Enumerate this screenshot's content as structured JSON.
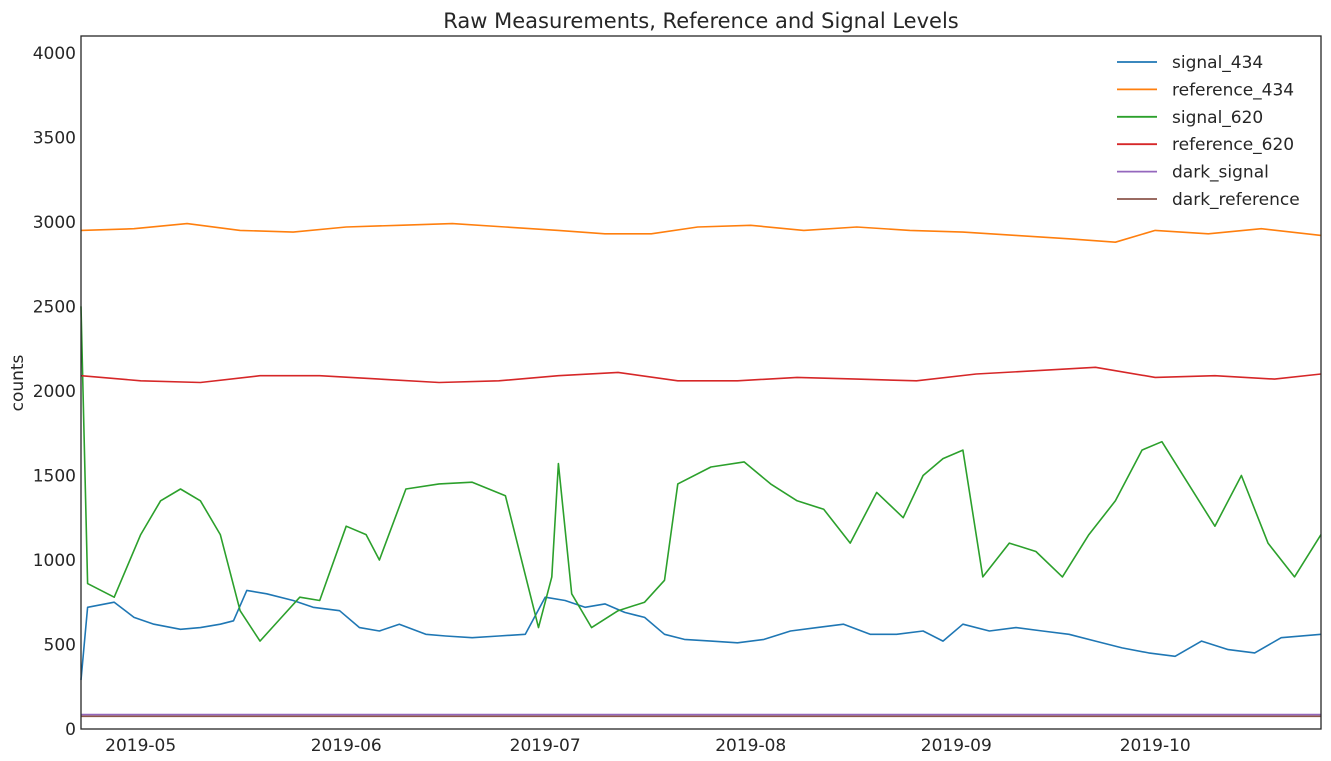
{
  "chart_data": {
    "type": "line",
    "title": "Raw Measurements, Reference and Signal Levels",
    "xlabel": "",
    "ylabel": "counts",
    "xlim": [
      "2019-04-22",
      "2019-10-26"
    ],
    "ylim": [
      0,
      4100
    ],
    "x_ticks": [
      "2019-05",
      "2019-06",
      "2019-07",
      "2019-08",
      "2019-09",
      "2019-10"
    ],
    "y_ticks": [
      0,
      500,
      1000,
      1500,
      2000,
      2500,
      3000,
      3500,
      4000
    ],
    "grid": false,
    "legend_position": "top-right",
    "series": [
      {
        "name": "signal_434",
        "color": "#1f77b4",
        "x": [
          "2019-04-22",
          "2019-04-23",
          "2019-04-27",
          "2019-04-30",
          "2019-05-03",
          "2019-05-07",
          "2019-05-10",
          "2019-05-13",
          "2019-05-15",
          "2019-05-17",
          "2019-05-20",
          "2019-05-24",
          "2019-05-27",
          "2019-05-31",
          "2019-06-03",
          "2019-06-06",
          "2019-06-09",
          "2019-06-13",
          "2019-06-16",
          "2019-06-20",
          "2019-06-24",
          "2019-06-28",
          "2019-07-01",
          "2019-07-04",
          "2019-07-07",
          "2019-07-10",
          "2019-07-13",
          "2019-07-16",
          "2019-07-19",
          "2019-07-22",
          "2019-07-26",
          "2019-07-30",
          "2019-08-03",
          "2019-08-07",
          "2019-08-11",
          "2019-08-15",
          "2019-08-19",
          "2019-08-23",
          "2019-08-27",
          "2019-08-30",
          "2019-09-02",
          "2019-09-06",
          "2019-09-10",
          "2019-09-14",
          "2019-09-18",
          "2019-09-22",
          "2019-09-26",
          "2019-09-30",
          "2019-10-04",
          "2019-10-08",
          "2019-10-12",
          "2019-10-16",
          "2019-10-20",
          "2019-10-26"
        ],
        "values": [
          290,
          720,
          750,
          660,
          620,
          590,
          600,
          620,
          640,
          820,
          800,
          760,
          720,
          700,
          600,
          580,
          620,
          560,
          550,
          540,
          550,
          560,
          780,
          760,
          720,
          740,
          690,
          660,
          560,
          530,
          520,
          510,
          530,
          580,
          600,
          620,
          560,
          560,
          580,
          520,
          620,
          580,
          600,
          580,
          560,
          520,
          480,
          450,
          430,
          520,
          470,
          450,
          540,
          560
        ]
      },
      {
        "name": "reference_434",
        "color": "#ff7f0e",
        "x": [
          "2019-04-22",
          "2019-04-30",
          "2019-05-08",
          "2019-05-16",
          "2019-05-24",
          "2019-06-01",
          "2019-06-09",
          "2019-06-17",
          "2019-06-25",
          "2019-07-03",
          "2019-07-10",
          "2019-07-17",
          "2019-07-24",
          "2019-08-01",
          "2019-08-09",
          "2019-08-17",
          "2019-08-25",
          "2019-09-02",
          "2019-09-10",
          "2019-09-18",
          "2019-09-25",
          "2019-10-01",
          "2019-10-09",
          "2019-10-17",
          "2019-10-26"
        ],
        "values": [
          2950,
          2960,
          2990,
          2950,
          2940,
          2970,
          2980,
          2990,
          2970,
          2950,
          2930,
          2930,
          2970,
          2980,
          2950,
          2970,
          2950,
          2940,
          2920,
          2900,
          2880,
          2950,
          2930,
          2960,
          2920
        ]
      },
      {
        "name": "signal_620",
        "color": "#2ca02c",
        "x": [
          "2019-04-22",
          "2019-04-23",
          "2019-04-27",
          "2019-05-01",
          "2019-05-04",
          "2019-05-07",
          "2019-05-10",
          "2019-05-13",
          "2019-05-16",
          "2019-05-19",
          "2019-05-22",
          "2019-05-25",
          "2019-05-28",
          "2019-06-01",
          "2019-06-04",
          "2019-06-06",
          "2019-06-10",
          "2019-06-15",
          "2019-06-20",
          "2019-06-25",
          "2019-06-30",
          "2019-07-02",
          "2019-07-03",
          "2019-07-05",
          "2019-07-08",
          "2019-07-12",
          "2019-07-16",
          "2019-07-19",
          "2019-07-21",
          "2019-07-26",
          "2019-07-31",
          "2019-08-04",
          "2019-08-08",
          "2019-08-12",
          "2019-08-16",
          "2019-08-20",
          "2019-08-24",
          "2019-08-27",
          "2019-08-30",
          "2019-09-02",
          "2019-09-05",
          "2019-09-09",
          "2019-09-13",
          "2019-09-17",
          "2019-09-21",
          "2019-09-25",
          "2019-09-29",
          "2019-10-02",
          "2019-10-06",
          "2019-10-10",
          "2019-10-14",
          "2019-10-18",
          "2019-10-22",
          "2019-10-26"
        ],
        "values": [
          2500,
          860,
          780,
          1150,
          1350,
          1420,
          1350,
          1150,
          700,
          520,
          650,
          780,
          760,
          1200,
          1150,
          1000,
          1420,
          1450,
          1460,
          1380,
          600,
          900,
          1570,
          800,
          600,
          700,
          750,
          880,
          1450,
          1550,
          1580,
          1450,
          1350,
          1300,
          1100,
          1400,
          1250,
          1500,
          1600,
          1650,
          900,
          1100,
          1050,
          900,
          1150,
          1350,
          1650,
          1700,
          1450,
          1200,
          1500,
          1100,
          900,
          1150
        ]
      },
      {
        "name": "reference_620",
        "color": "#d62728",
        "x": [
          "2019-04-22",
          "2019-05-01",
          "2019-05-10",
          "2019-05-19",
          "2019-05-28",
          "2019-06-06",
          "2019-06-15",
          "2019-06-24",
          "2019-07-03",
          "2019-07-12",
          "2019-07-21",
          "2019-07-30",
          "2019-08-08",
          "2019-08-17",
          "2019-08-26",
          "2019-09-04",
          "2019-09-13",
          "2019-09-22",
          "2019-10-01",
          "2019-10-10",
          "2019-10-19",
          "2019-10-26"
        ],
        "values": [
          2090,
          2060,
          2050,
          2090,
          2090,
          2070,
          2050,
          2060,
          2090,
          2110,
          2060,
          2060,
          2080,
          2070,
          2060,
          2100,
          2120,
          2140,
          2080,
          2090,
          2070,
          2100
        ]
      },
      {
        "name": "dark_signal",
        "color": "#9467bd",
        "x": [
          "2019-04-22",
          "2019-10-26"
        ],
        "values": [
          85,
          85
        ]
      },
      {
        "name": "dark_reference",
        "color": "#8c564b",
        "x": [
          "2019-04-22",
          "2019-10-26"
        ],
        "values": [
          75,
          75
        ]
      }
    ]
  }
}
